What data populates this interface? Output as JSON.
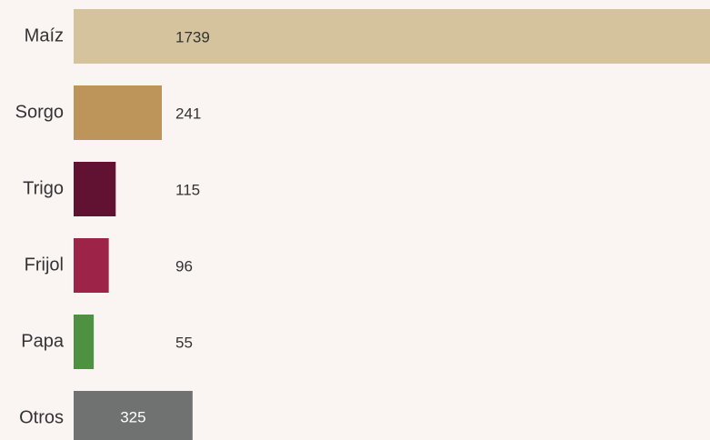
{
  "chart_data": {
    "type": "bar",
    "orientation": "horizontal",
    "categories": [
      "Maíz",
      "Sorgo",
      "Trigo",
      "Frijol",
      "Papa",
      "Otros"
    ],
    "values": [
      1739,
      241,
      115,
      96,
      55,
      325
    ],
    "colors": [
      "#d5c39d",
      "#bd955a",
      "#611232",
      "#9e2348",
      "#4e9140",
      "#6f7271"
    ]
  }
}
